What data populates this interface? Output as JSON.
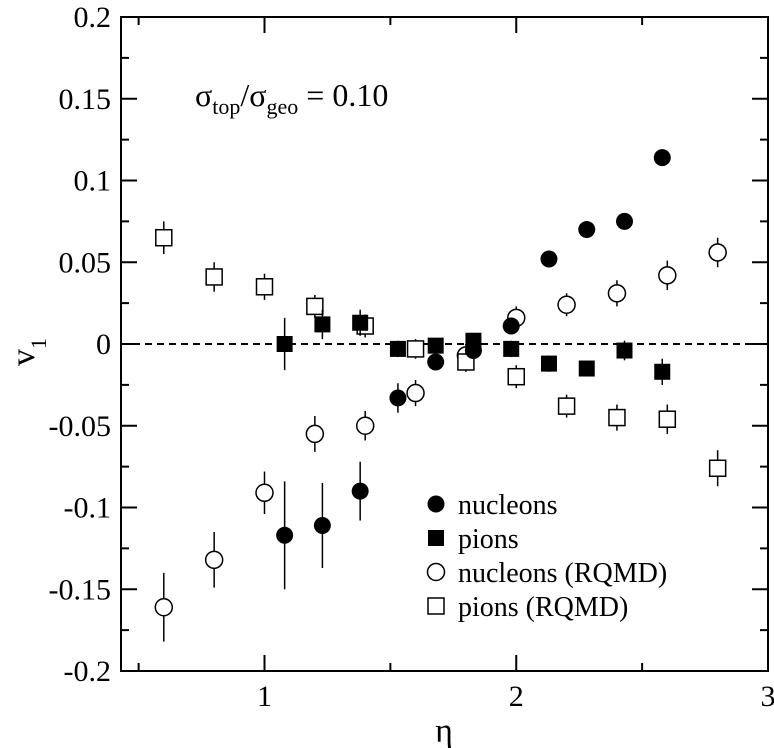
{
  "chart_data": {
    "type": "scatter",
    "xlabel": "η",
    "ylabel": "v",
    "ylabel_sub": "1",
    "xlim": [
      0.43,
      3.0
    ],
    "ylim": [
      -0.2,
      0.2
    ],
    "x_ticks": [
      1,
      2,
      3
    ],
    "x_tick_labels": [
      "1",
      "2",
      "3"
    ],
    "y_ticks": [
      -0.2,
      -0.15,
      -0.1,
      -0.05,
      0,
      0.05,
      0.1,
      0.15,
      0.2
    ],
    "y_tick_labels": [
      "-0.2",
      "-0.15",
      "-0.1",
      "-0.05",
      "0",
      "0.05",
      "0.1",
      "0.15",
      "0.2"
    ],
    "reference_line_y": 0,
    "annotation": {
      "sigma": "σ",
      "sub_top": "top",
      "slash": "/",
      "sub_geo": "geo",
      "value": " = 0.10"
    },
    "legend_position": "bottom-right",
    "series": [
      {
        "name": "nucleons",
        "marker": "filled-circle",
        "x": [
          1.08,
          1.23,
          1.38,
          1.53,
          1.68,
          1.83,
          1.98,
          2.13,
          2.28,
          2.43,
          2.58
        ],
        "y": [
          -0.117,
          -0.111,
          -0.09,
          -0.033,
          -0.011,
          -0.004,
          0.011,
          0.052,
          0.07,
          0.075,
          0.114
        ],
        "err": [
          0.033,
          0.026,
          0.018,
          0.009,
          0.004,
          0.004,
          0.005,
          0.005,
          0.004,
          0.005,
          0.005
        ]
      },
      {
        "name": "pions",
        "marker": "filled-square",
        "x": [
          1.08,
          1.23,
          1.38,
          1.53,
          1.68,
          1.83,
          1.98,
          2.13,
          2.28,
          2.43,
          2.58
        ],
        "y": [
          0.0,
          0.012,
          0.013,
          -0.003,
          -0.001,
          0.002,
          -0.003,
          -0.012,
          -0.015,
          -0.004,
          -0.017
        ],
        "err": [
          0.016,
          0.009,
          0.008,
          0.005,
          0.004,
          0.004,
          0.005,
          0.005,
          0.004,
          0.006,
          0.008
        ]
      },
      {
        "name": "nucleons (RQMD)",
        "marker": "open-circle",
        "x": [
          0.6,
          0.8,
          1.0,
          1.2,
          1.4,
          1.6,
          1.8,
          2.0,
          2.2,
          2.4,
          2.6,
          2.8
        ],
        "y": [
          -0.161,
          -0.132,
          -0.091,
          -0.055,
          -0.05,
          -0.03,
          -0.007,
          0.016,
          0.024,
          0.031,
          0.042,
          0.056
        ],
        "err": [
          0.021,
          0.017,
          0.013,
          0.011,
          0.009,
          0.008,
          0.007,
          0.007,
          0.007,
          0.008,
          0.009,
          0.009
        ]
      },
      {
        "name": "pions (RQMD)",
        "marker": "open-square",
        "x": [
          0.6,
          0.8,
          1.0,
          1.2,
          1.4,
          1.6,
          1.8,
          2.0,
          2.2,
          2.4,
          2.6,
          2.8
        ],
        "y": [
          0.065,
          0.041,
          0.035,
          0.023,
          0.011,
          -0.003,
          -0.011,
          -0.02,
          -0.038,
          -0.045,
          -0.046,
          -0.076
        ],
        "err": [
          0.01,
          0.009,
          0.008,
          0.007,
          0.007,
          0.006,
          0.006,
          0.007,
          0.007,
          0.008,
          0.009,
          0.011
        ]
      }
    ]
  }
}
